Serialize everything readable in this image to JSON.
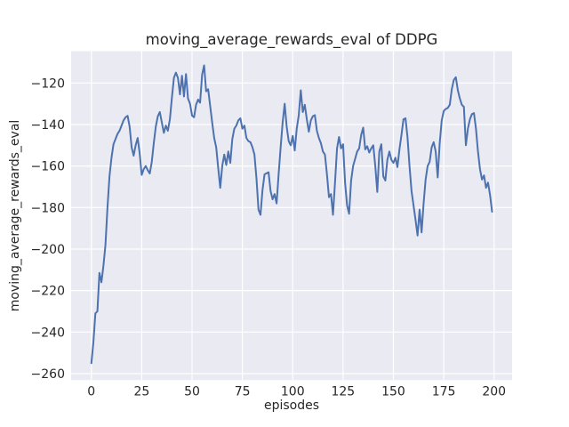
{
  "chart_data": {
    "type": "line",
    "title": "moving_average_rewards_eval of DDPG",
    "xlabel": "episodes",
    "ylabel": "moving_average_rewards_eval",
    "x_ticks": [
      0,
      25,
      50,
      75,
      100,
      125,
      150,
      175,
      200
    ],
    "y_ticks": [
      -260,
      -240,
      -220,
      -200,
      -180,
      -160,
      -140,
      -120
    ],
    "xlim": [
      -10.05,
      208.95
    ],
    "ylim": [
      -263.1,
      -104.7
    ],
    "grid": true,
    "legend_position": "none",
    "style": {
      "figure_bg": "#ffffff",
      "axes_bg": "#eaeaf2",
      "grid_color": "#ffffff",
      "line_color": "#4c72b0",
      "text_color": "#262626"
    },
    "series": [
      {
        "name": "moving_average_rewards_eval",
        "x_start": 0,
        "x_step": 1,
        "values": [
          -255,
          -245,
          -231,
          -230,
          -211.5,
          -216,
          -208,
          -198,
          -180,
          -165,
          -156,
          -149.5,
          -147,
          -144.5,
          -143,
          -140.5,
          -138,
          -136.5,
          -135.8,
          -141,
          -151,
          -155,
          -150,
          -146.5,
          -154,
          -164.3,
          -161.5,
          -160,
          -162,
          -163.6,
          -158,
          -149,
          -141,
          -136,
          -134,
          -139,
          -144,
          -140.5,
          -143,
          -137.5,
          -127,
          -117.5,
          -115,
          -117.5,
          -125.5,
          -116.5,
          -126.5,
          -115.7,
          -127.5,
          -130,
          -135.7,
          -136.5,
          -130.5,
          -128,
          -129.5,
          -116,
          -111.5,
          -124,
          -123,
          -131,
          -139,
          -146.5,
          -151,
          -161,
          -170.5,
          -160,
          -154.5,
          -159.5,
          -153,
          -158.5,
          -147,
          -142,
          -140.5,
          -138,
          -137,
          -142,
          -140.5,
          -146.5,
          -148,
          -148.5,
          -151,
          -154.5,
          -166,
          -181,
          -183.5,
          -171.5,
          -164,
          -163.5,
          -163,
          -172,
          -176,
          -173.5,
          -178,
          -164,
          -151,
          -139,
          -130,
          -141,
          -148,
          -150,
          -145.5,
          -152.5,
          -142,
          -135.5,
          -123.5,
          -134,
          -130.5,
          -137.5,
          -143.5,
          -138,
          -136,
          -135.5,
          -143,
          -146.5,
          -149,
          -153,
          -154.5,
          -164,
          -175,
          -173.5,
          -183.5,
          -168,
          -151.5,
          -146,
          -151.5,
          -149.5,
          -168,
          -179,
          -183,
          -167,
          -160,
          -156.5,
          -153,
          -151.5,
          -145,
          -141.5,
          -152,
          -150.5,
          -153.5,
          -151.5,
          -150,
          -160,
          -172.5,
          -153,
          -149.5,
          -165,
          -167,
          -157,
          -153,
          -157,
          -158.5,
          -156,
          -160.5,
          -152,
          -145,
          -137.5,
          -137,
          -146,
          -160,
          -172,
          -179,
          -186,
          -193.5,
          -181,
          -192,
          -178,
          -166.5,
          -160,
          -158,
          -151,
          -148.5,
          -153,
          -165.5,
          -149,
          -138,
          -133.5,
          -132.5,
          -132,
          -130.5,
          -123,
          -118.5,
          -117.2,
          -123.5,
          -127.5,
          -130.5,
          -131.5,
          -150,
          -142,
          -137.5,
          -135,
          -134.5,
          -142,
          -153,
          -161.5,
          -166.5,
          -164.5,
          -170.5,
          -168,
          -174,
          -182
        ]
      }
    ]
  }
}
